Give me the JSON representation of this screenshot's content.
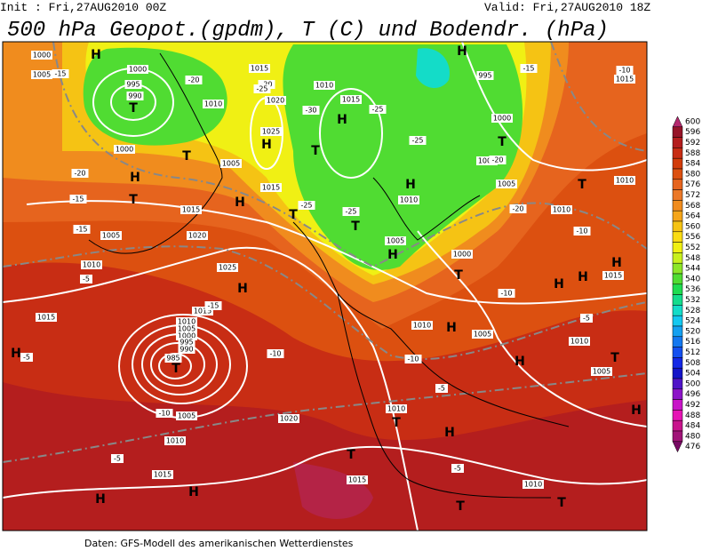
{
  "init": "Init : Fri,27AUG2010 00Z",
  "valid": "Valid: Fri,27AUG2010 18Z",
  "title": "500 hPa Geopot.(gpdm), T (C) und Bodendr. (hPa)",
  "footer": "Daten: GFS-Modell des amerikanischen Wetterdienstes",
  "colorbar": {
    "levels": [
      600,
      596,
      592,
      588,
      584,
      580,
      576,
      572,
      568,
      564,
      560,
      556,
      552,
      548,
      544,
      540,
      536,
      532,
      528,
      524,
      520,
      516,
      512,
      508,
      504,
      500,
      496,
      492,
      488,
      484,
      480,
      476
    ],
    "colors": [
      "#b4286e",
      "#961428",
      "#b41e1e",
      "#c82d14",
      "#d23c0a",
      "#dc5010",
      "#e6641e",
      "#eb7828",
      "#f08c1e",
      "#f5a519",
      "#f5c314",
      "#fadc14",
      "#f0f014",
      "#c8f01e",
      "#8ce628",
      "#50dc32",
      "#1edc50",
      "#14dc8c",
      "#14dcc8",
      "#14c8f0",
      "#14a0f0",
      "#1478f0",
      "#1450f0",
      "#1428e6",
      "#1414c8",
      "#5014c8",
      "#8c14c8",
      "#c814c8",
      "#e614b4",
      "#c8148c",
      "#a01478",
      "#780a64"
    ]
  },
  "map_labels": [
    "H",
    "T",
    "1000",
    "995",
    "990",
    "1000",
    "1010",
    "1015",
    "1020",
    "1025",
    "H",
    "1005",
    "1015",
    "T",
    "1010",
    "1015",
    "H",
    "-30",
    "-25",
    "-20",
    "T",
    "H",
    "T",
    "H",
    "1015",
    "-25",
    "-25",
    "T",
    "T",
    "H",
    "1010",
    "995",
    "1000",
    "T",
    "1000",
    "1005",
    "-20",
    "-25",
    "H",
    "T",
    "1010",
    "1020",
    "1005",
    "1010",
    "1025",
    "H",
    "1005",
    "H",
    "1000",
    "T",
    "H",
    "H",
    "H",
    "1015",
    "1015",
    "1015",
    "1010",
    "1005",
    "1000",
    "995",
    "990",
    "985",
    "T",
    "-5",
    "H",
    "-10",
    "1020",
    "-10",
    "1005",
    "1010",
    "-5",
    "1015",
    "H",
    "H",
    "H",
    "1005",
    "1010",
    "H",
    "T",
    "1005",
    "1010",
    "T",
    "H",
    "H",
    "T",
    "1015",
    "1010",
    "T",
    "T",
    "-5",
    "-10",
    "-5",
    "1010",
    "-10",
    "-5",
    "-15",
    "1015",
    "-10",
    "-15",
    "1010",
    "-20",
    "-10",
    "-15",
    "-20",
    "-15",
    "-5",
    "1000",
    "1005",
    "-15",
    "-20",
    "-25"
  ]
}
